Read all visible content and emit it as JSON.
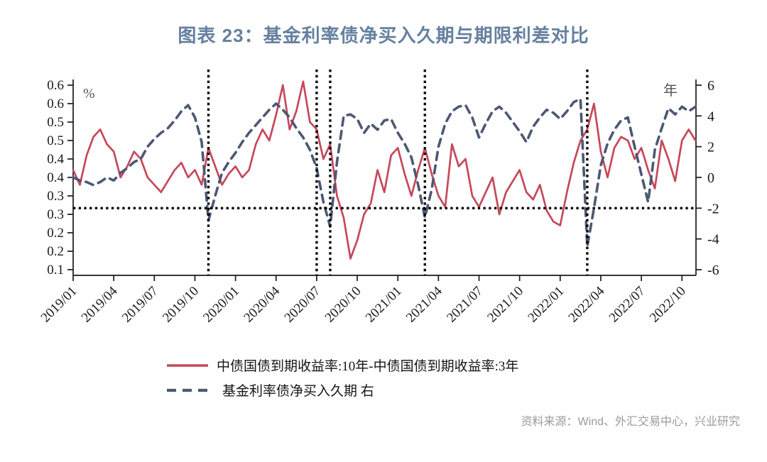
{
  "title": "图表 23：基金利率债净买入久期与期限利差对比",
  "source_note": "资料来源：Wind、外汇交易中心，兴业研究",
  "colors": {
    "title": "#66809f",
    "axis": "#1a1a1a",
    "unit_label": "#555555",
    "reference_line": "#000000",
    "spread_series": "#c6485a",
    "duration_series": "#4c5874",
    "source": "#9a9a9a"
  },
  "legend": [
    {
      "label": "中债国债到期收益率:10年-中债国债到期收益率:3年",
      "style": "solid",
      "color": "#c6485a"
    },
    {
      "label": "基金利率债净买入久期 右",
      "style": "dashed",
      "color": "#4c5874"
    }
  ],
  "chart_data": {
    "type": "line",
    "title": "图表 23：基金利率债净买入久期与期限利差对比",
    "grid": false,
    "legend_position": "bottom",
    "left_axis": {
      "unit_label": "%",
      "min": 0.1,
      "max": 0.6,
      "tick_step": 0.05,
      "tick_labels": [
        "0.6",
        "0.6",
        "0.5",
        "0.5",
        "0.4",
        "0.4",
        "0.3",
        "0.3",
        "0.2",
        "0.2",
        "0.1"
      ]
    },
    "right_axis": {
      "unit_label": "年",
      "min": -6,
      "max": 6,
      "tick_step": 2,
      "tick_labels": [
        "6",
        "4",
        "2",
        "0",
        "-2",
        "-4",
        "-6"
      ]
    },
    "x_tick_labels": [
      "2019/01",
      "2019/04",
      "2019/07",
      "2019/10",
      "2020/01",
      "2020/04",
      "2020/07",
      "2020/10",
      "2021/01",
      "2021/04",
      "2021/07",
      "2021/10",
      "2022/01",
      "2022/04",
      "2022/07",
      "2022/10"
    ],
    "x_start": "2019/01",
    "x_start_month_index": 0,
    "x_step_months": 0.5,
    "series": [
      {
        "name": "中债国债到期收益率:10年-中债国债到期收益率:3年",
        "axis": "left",
        "style": "solid",
        "color": "#c6485a",
        "values": [
          0.37,
          0.33,
          0.41,
          0.46,
          0.48,
          0.44,
          0.42,
          0.35,
          0.38,
          0.42,
          0.4,
          0.35,
          0.33,
          0.31,
          0.34,
          0.37,
          0.39,
          0.35,
          0.37,
          0.33,
          0.43,
          0.38,
          0.33,
          0.36,
          0.38,
          0.35,
          0.37,
          0.44,
          0.48,
          0.45,
          0.52,
          0.6,
          0.48,
          0.53,
          0.61,
          0.5,
          0.48,
          0.4,
          0.44,
          0.3,
          0.24,
          0.13,
          0.18,
          0.25,
          0.28,
          0.37,
          0.31,
          0.41,
          0.43,
          0.36,
          0.3,
          0.37,
          0.43,
          0.36,
          0.3,
          0.27,
          0.44,
          0.38,
          0.4,
          0.3,
          0.27,
          0.31,
          0.35,
          0.25,
          0.31,
          0.34,
          0.37,
          0.31,
          0.29,
          0.33,
          0.26,
          0.23,
          0.22,
          0.31,
          0.39,
          0.45,
          0.48,
          0.55,
          0.42,
          0.35,
          0.43,
          0.46,
          0.45,
          0.4,
          0.43,
          0.37,
          0.32,
          0.45,
          0.4,
          0.34,
          0.45,
          0.48,
          0.45
        ]
      },
      {
        "name": "基金利率债净买入久期 右",
        "axis": "right",
        "style": "dashed",
        "color": "#4c5874",
        "values": [
          0.0,
          -0.2,
          -0.3,
          -0.5,
          -0.3,
          0.0,
          -0.2,
          0.3,
          0.6,
          1.0,
          1.2,
          2.0,
          2.5,
          2.9,
          3.2,
          3.7,
          4.3,
          4.7,
          3.9,
          2.3,
          -2.8,
          -1.2,
          0.3,
          1.0,
          1.6,
          2.3,
          2.9,
          3.4,
          3.9,
          4.4,
          4.8,
          4.4,
          3.9,
          3.2,
          2.6,
          1.8,
          0.6,
          -1.6,
          -3.2,
          1.0,
          4.0,
          4.1,
          3.8,
          2.9,
          3.5,
          3.1,
          3.7,
          3.8,
          2.9,
          2.2,
          1.3,
          -0.5,
          -2.6,
          -0.8,
          2.0,
          3.5,
          4.3,
          4.6,
          4.7,
          3.9,
          2.6,
          3.5,
          4.3,
          4.6,
          4.2,
          3.6,
          3.0,
          2.3,
          3.3,
          3.9,
          4.4,
          4.2,
          3.8,
          4.3,
          4.9,
          5.1,
          -4.5,
          -2.0,
          0.8,
          2.2,
          3.1,
          3.7,
          3.9,
          2.0,
          0.2,
          -1.6,
          1.8,
          3.2,
          4.5,
          4.1,
          4.6,
          4.3,
          4.6
        ]
      }
    ],
    "reference_lines": {
      "horizontal": {
        "axis": "right",
        "value": -2
      },
      "vertical_dates": [
        "2019/11",
        "2020/07",
        "2020/08",
        "2021/03",
        "2022/03"
      ]
    }
  }
}
